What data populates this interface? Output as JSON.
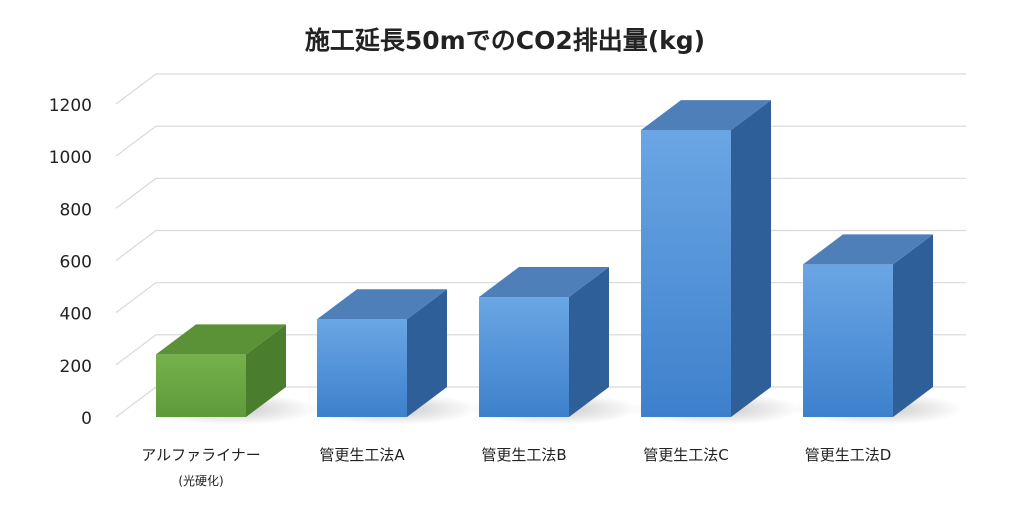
{
  "chart_data": {
    "type": "bar",
    "title": "施工延長50mでのCO2排出量(kg)",
    "categories": [
      {
        "label": "アルファライナー",
        "sublabel": "(光硬化)"
      },
      {
        "label": "管更生工法A",
        "sublabel": ""
      },
      {
        "label": "管更生工法B",
        "sublabel": ""
      },
      {
        "label": "管更生工法C",
        "sublabel": ""
      },
      {
        "label": "管更生工法D",
        "sublabel": ""
      }
    ],
    "values": [
      240,
      375,
      460,
      1100,
      585
    ],
    "bar_colors": [
      "#6aa544",
      "#4f8fd6",
      "#4f8fd6",
      "#4f8fd6",
      "#4f8fd6"
    ],
    "ylim": [
      0,
      1200
    ],
    "yticks": [
      "0",
      "200",
      "400",
      "600",
      "800",
      "1000",
      "1200"
    ],
    "xlabel": "",
    "ylabel": "",
    "grid": true,
    "legend": "none"
  }
}
